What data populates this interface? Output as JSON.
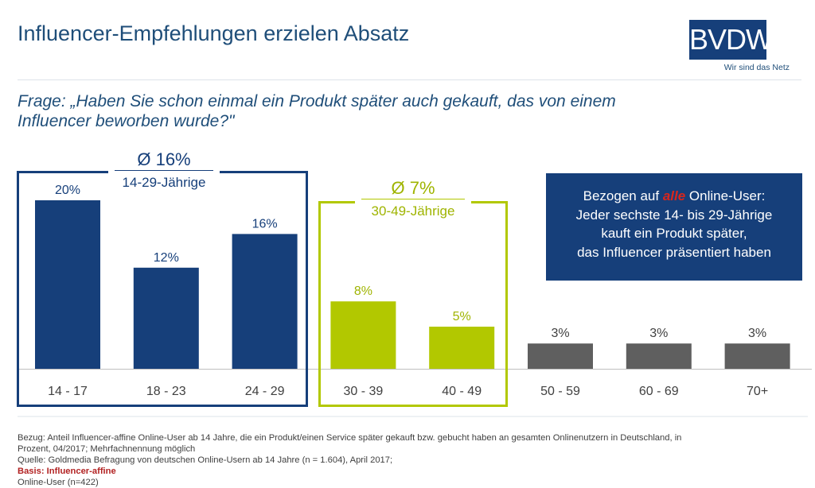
{
  "header": {
    "title": "Influencer-Empfehlungen erzielen Absatz",
    "logo_text": "BVDW",
    "logo_tagline": "Wir sind das Netz"
  },
  "question": {
    "line1": "Frage: „Haben Sie schon einmal ein Produkt später auch gekauft, das von einem",
    "line2": "Influencer beworben wurde?\""
  },
  "groups": {
    "young": {
      "avg": "Ø 16%",
      "label": "14-29-Jährige"
    },
    "mid": {
      "avg": "Ø 7%",
      "label": "30-49-Jährige"
    }
  },
  "callout": {
    "prefix": "Bezogen auf ",
    "highlight": "alle",
    "suffix": " Online-User:",
    "line2": "Jeder sechste 14- bis 29-Jährige",
    "line3": "kauft ein Produkt später,",
    "line4": "das Influencer präsentiert haben"
  },
  "chart_data": {
    "type": "bar",
    "title": "",
    "xlabel": "",
    "ylabel": "",
    "ylim": [
      0,
      22
    ],
    "grid": false,
    "categories": [
      "14 - 17",
      "18 - 23",
      "24 - 29",
      "30 - 39",
      "40 - 49",
      "50 - 59",
      "60 - 69",
      "70+"
    ],
    "values": [
      20,
      12,
      16,
      8,
      5,
      3,
      3,
      3
    ],
    "value_labels": [
      "20%",
      "12%",
      "16%",
      "8%",
      "5%",
      "3%",
      "3%",
      "3%"
    ],
    "colors": [
      "#163f7a",
      "#163f7a",
      "#163f7a",
      "#b2c800",
      "#b2c800",
      "#5f5f5f",
      "#5f5f5f",
      "#5f5f5f"
    ]
  },
  "footnote": {
    "line1": "Bezug: Anteil Influencer-affine Online-User ab 14 Jahre, die ein Produkt/einen Service später gekauft bzw. gebucht haben an gesamten Onlinenutzern in Deutschland, in",
    "line2": "Prozent, 04/2017; Mehrfachnennung möglich",
    "source": "Quelle: Goldmedia Befragung von deutschen Online-Usern ab 14 Jahre (n = 1.604), April 2017; ",
    "basis": "Basis: Influencer-affine",
    "tail": " Online-User (n=422)"
  }
}
